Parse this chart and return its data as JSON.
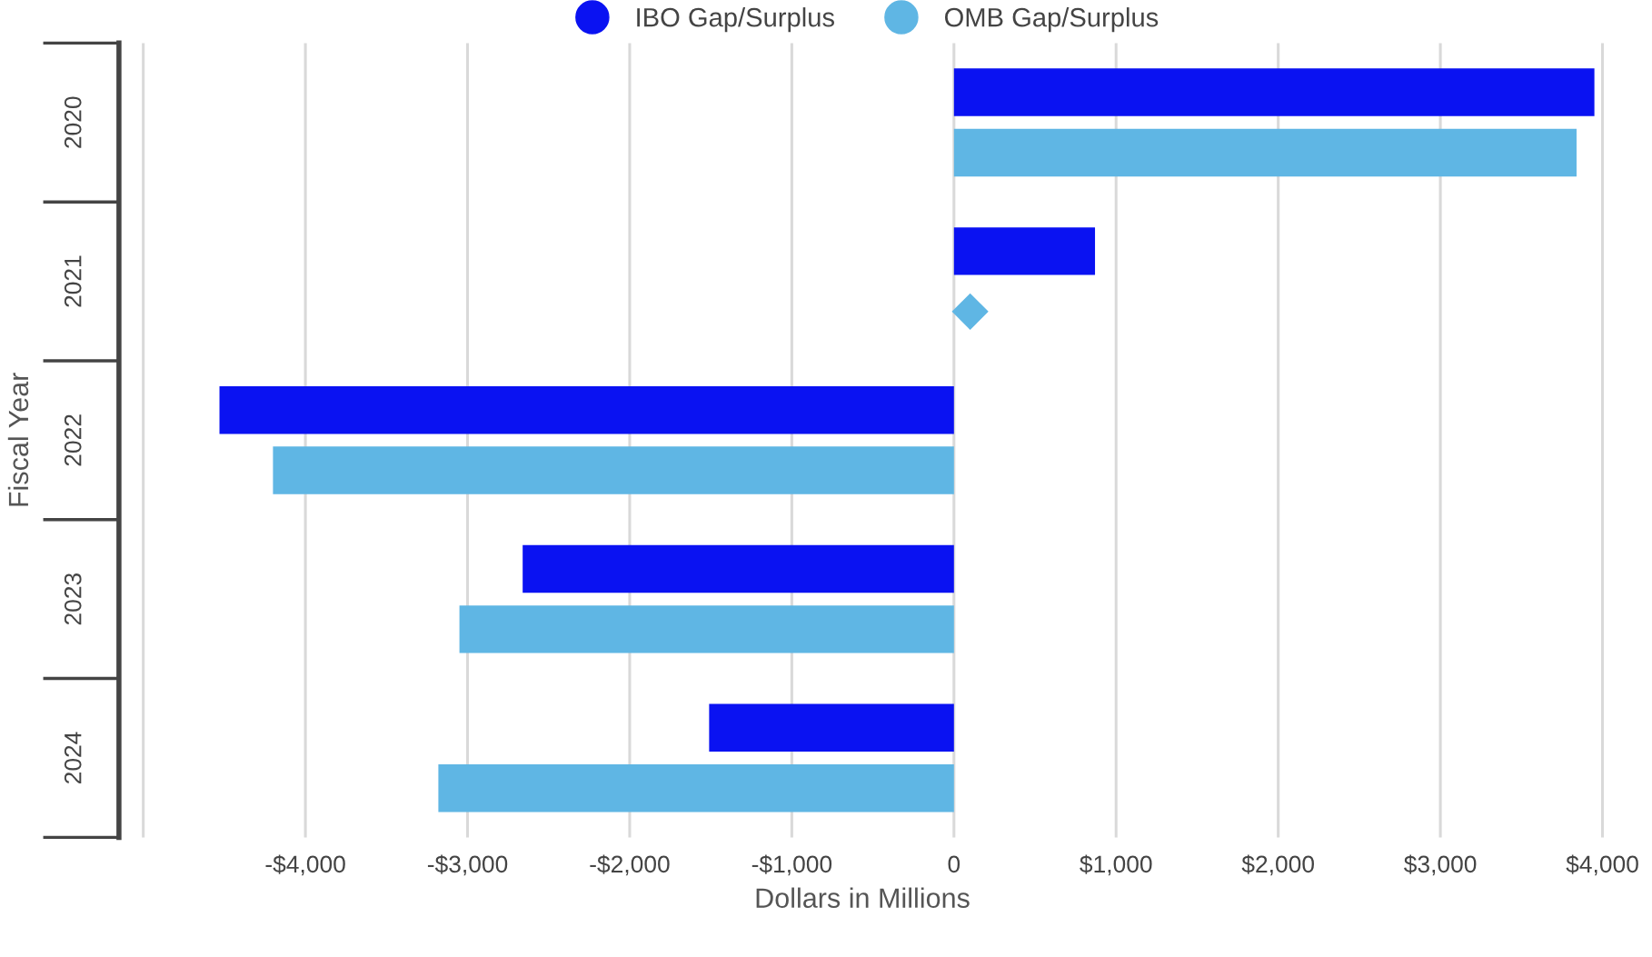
{
  "chart_data": {
    "type": "bar",
    "orientation": "horizontal",
    "xlabel": "Dollars in Millions",
    "ylabel": "Fiscal Year",
    "categories": [
      "2020",
      "2021",
      "2022",
      "2023",
      "2024"
    ],
    "series": [
      {
        "name": "IBO Gap/Surplus",
        "color": "#0a12f2",
        "values": [
          3950,
          870,
          -4530,
          -2660,
          -1510
        ]
      },
      {
        "name": "OMB Gap/Surplus",
        "color": "#5fb6e4",
        "values": [
          3840,
          null,
          -4200,
          -3050,
          -3180
        ]
      },
      {
        "type": "scatter",
        "marker": "diamond",
        "color": "#5fb6e4",
        "values": [
          null,
          100,
          null,
          null,
          null
        ]
      }
    ],
    "xlim": [
      -5150,
      4020
    ],
    "xticks": [
      {
        "value": -5000,
        "label": null
      },
      {
        "value": -4000,
        "label": "-$4,000"
      },
      {
        "value": -3000,
        "label": "-$3,000"
      },
      {
        "value": -2000,
        "label": "-$2,000"
      },
      {
        "value": -1000,
        "label": "-$1,000"
      },
      0,
      {
        "value": 1000,
        "label": "$1,000"
      },
      {
        "value": 2000,
        "label": "$2,000"
      },
      {
        "value": 3000,
        "label": "$3,000"
      },
      {
        "value": 4000,
        "label": "$4,000"
      }
    ],
    "grid": "x",
    "legend": "top"
  }
}
